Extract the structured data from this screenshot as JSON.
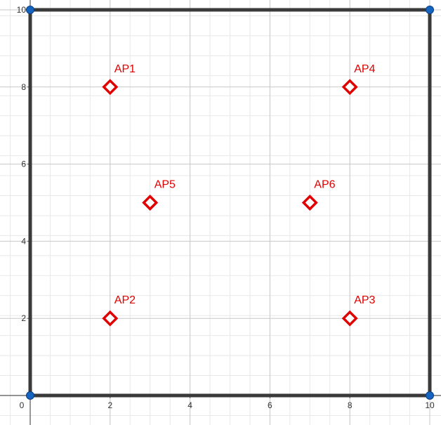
{
  "chart_data": {
    "type": "scatter",
    "title": "",
    "xlabel": "",
    "ylabel": "",
    "xlim": [
      0,
      10
    ],
    "ylim": [
      0,
      10
    ],
    "grid": true,
    "major_ticks": [
      0,
      2,
      4,
      6,
      8,
      10
    ],
    "x_tick_labels": [
      "0",
      "2",
      "4",
      "6",
      "8",
      "10"
    ],
    "y_tick_labels": [
      "2",
      "4",
      "6",
      "8",
      "10"
    ],
    "boundary": {
      "corners": [
        {
          "x": 0,
          "y": 0
        },
        {
          "x": 10,
          "y": 0
        },
        {
          "x": 10,
          "y": 10
        },
        {
          "x": 0,
          "y": 10
        }
      ],
      "edge_color": "#3a3a3a",
      "corner_color": "#1565c0"
    },
    "points": [
      {
        "label": "AP1",
        "x": 2,
        "y": 8
      },
      {
        "label": "AP2",
        "x": 2,
        "y": 2
      },
      {
        "label": "AP3",
        "x": 8,
        "y": 2
      },
      {
        "label": "AP4",
        "x": 8,
        "y": 8
      },
      {
        "label": "AP5",
        "x": 3,
        "y": 5
      },
      {
        "label": "AP6",
        "x": 7,
        "y": 5
      }
    ],
    "marker": "diamond",
    "marker_color": "#e00000",
    "label_color": "#e00000"
  }
}
